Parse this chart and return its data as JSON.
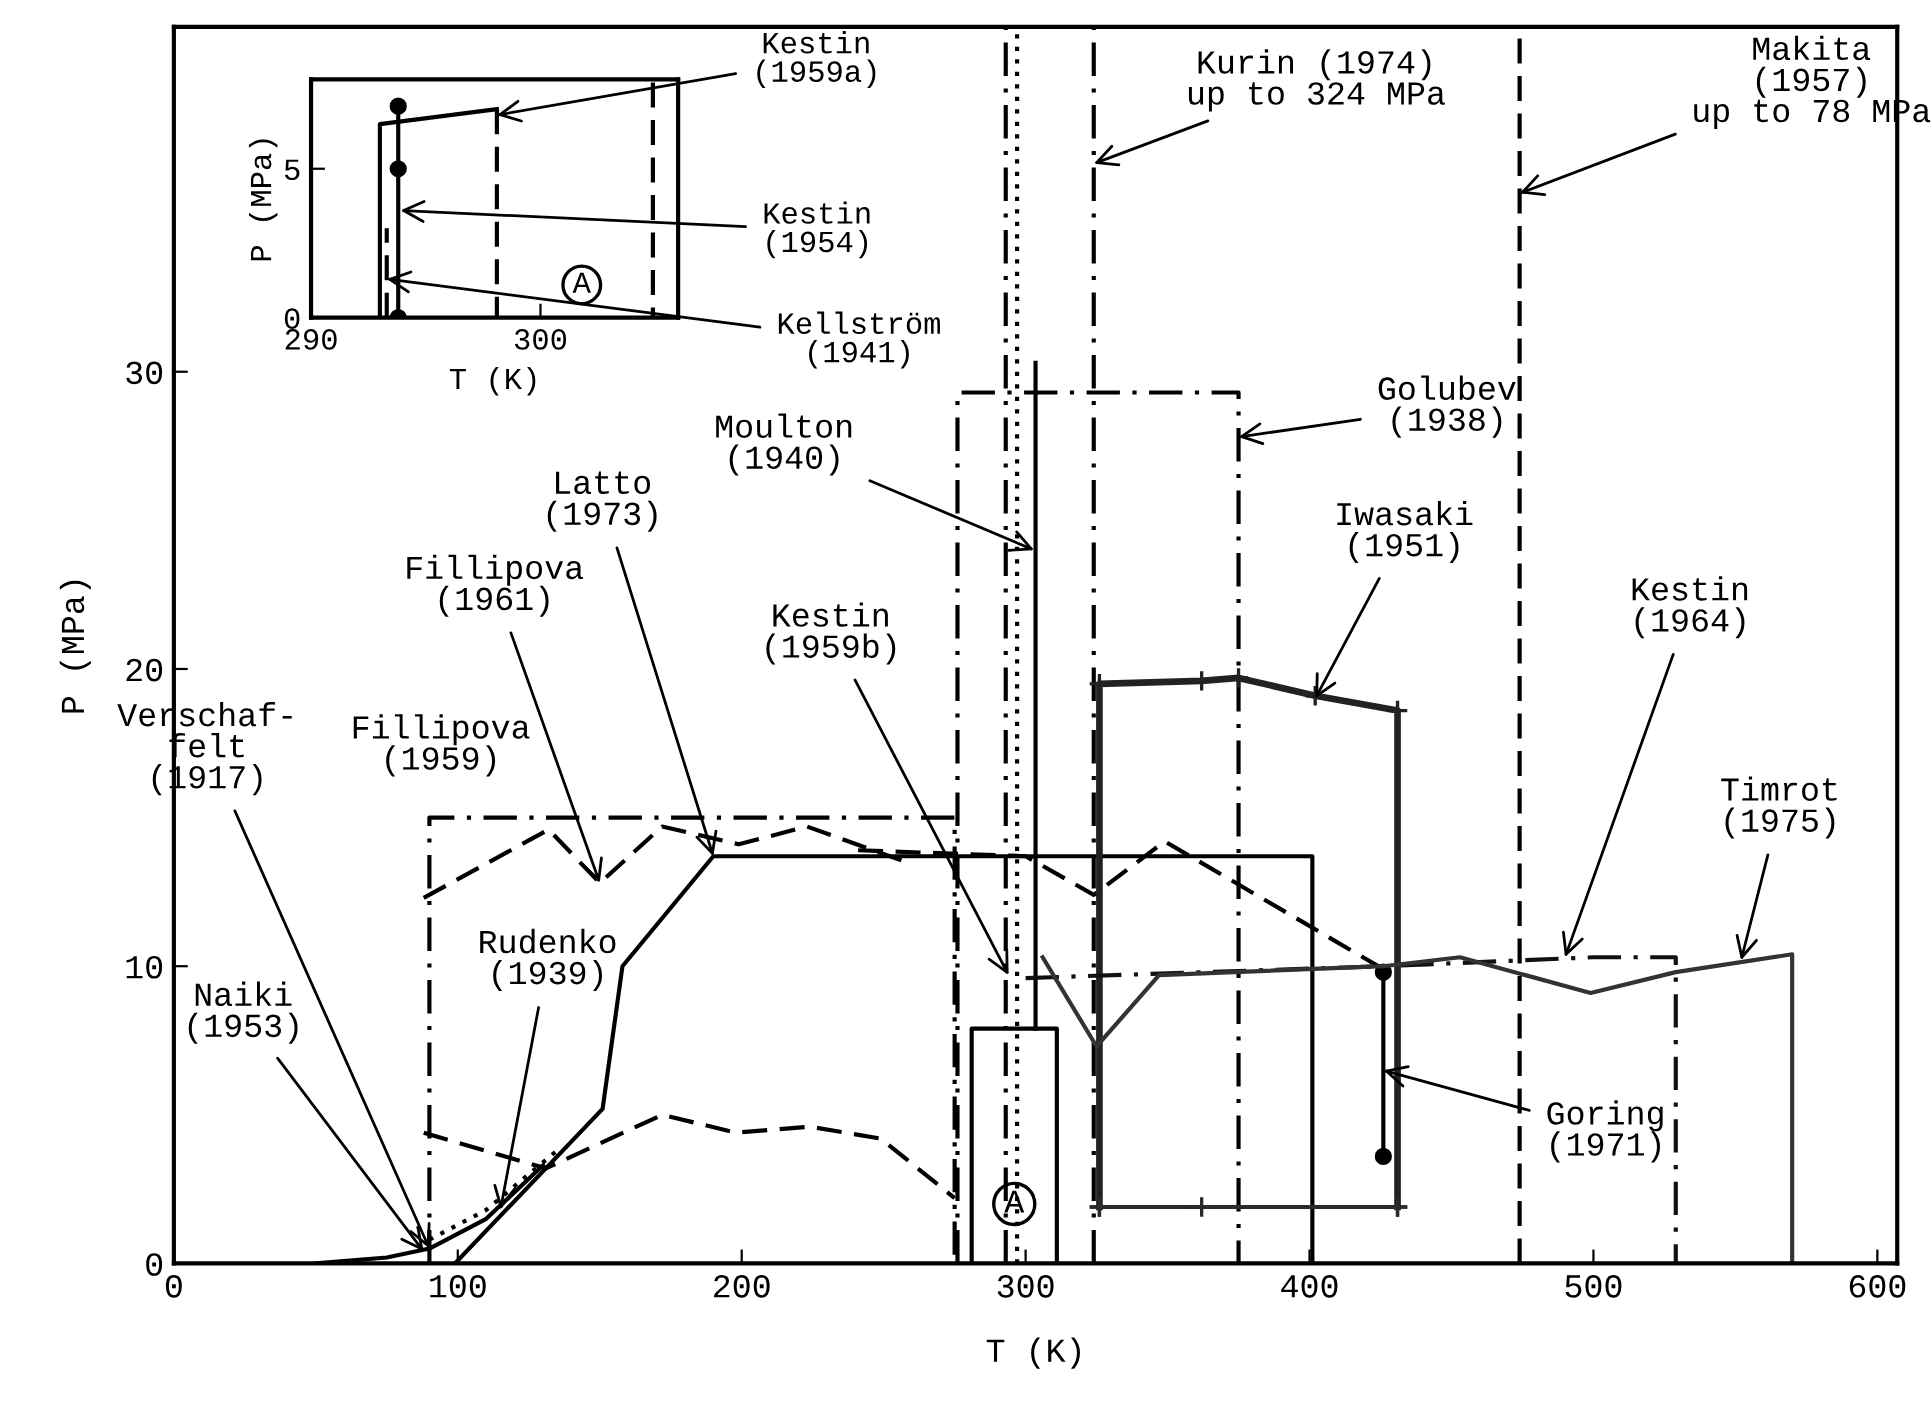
{
  "chart_data": [
    {
      "type": "line",
      "xlabel": "T (K)",
      "ylabel": "P (MPa)",
      "xlim": [
        0,
        607
      ],
      "ylim": [
        0,
        41.6
      ],
      "xticks": [
        0,
        100,
        200,
        300,
        400,
        500,
        600
      ],
      "yticks": [
        0,
        10,
        20,
        30
      ],
      "grid": false,
      "series": [
        {
          "color": "#000000",
          "line_style": "dashdot",
          "marker": "none",
          "x": [
            90,
            90,
            275,
            275
          ],
          "values": [
            0,
            15,
            15,
            0
          ]
        },
        {
          "color": "#000000",
          "line_style": "dashed",
          "marker": "none",
          "x": [
            88,
            132,
            150,
            172,
            199,
            223,
            258
          ],
          "values": [
            12.3,
            14.6,
            12.8,
            14.7,
            14.1,
            14.7,
            13.5
          ]
        },
        {
          "color": "#000000",
          "line_style": "dashed",
          "marker": "none",
          "x": [
            88,
            131,
            172,
            198,
            224,
            249,
            275
          ],
          "values": [
            4.4,
            3.2,
            5.0,
            4.4,
            4.6,
            4.2,
            2.2
          ]
        },
        {
          "color": "#000000",
          "line_style": "dashed",
          "marker": "none",
          "x": [
            241,
            300,
            324,
            349,
            426
          ],
          "values": [
            13.9,
            13.7,
            12.4,
            14.2,
            9.9
          ]
        },
        {
          "color": "#000000",
          "line_style": "solid",
          "marker": "none",
          "x": [
            99,
            151,
            158,
            190,
            401,
            401
          ],
          "values": [
            0,
            5.2,
            10.0,
            13.7,
            13.7,
            0
          ]
        },
        {
          "color": "#000000",
          "line_style": "solid",
          "marker": "none",
          "x": [
            50,
            75,
            90,
            110,
            130
          ],
          "values": [
            0,
            0.2,
            0.5,
            1.5,
            3.3
          ]
        },
        {
          "color": "#000000",
          "line_style": "dotted",
          "marker": "none",
          "x": [
            90,
            110,
            135
          ],
          "values": [
            0.8,
            1.8,
            3.8
          ]
        },
        {
          "color": "#000000",
          "line_style": "dashdot",
          "marker": "none",
          "x": [
            276,
            276,
            375,
            375
          ],
          "values": [
            0,
            29.3,
            29.3,
            0
          ]
        },
        {
          "color": "#000000",
          "line_style": "solid",
          "marker": "none",
          "x": [
            281,
            281,
            311,
            311
          ],
          "values": [
            0,
            7.9,
            7.9,
            0
          ]
        },
        {
          "color": "#000000",
          "line_style": "dashdot",
          "marker": "none",
          "x": [
            293,
            293
          ],
          "values": [
            0,
            41.6
          ]
        },
        {
          "color": "#000000",
          "line_style": "dotted",
          "marker": "none",
          "x": [
            297,
            297
          ],
          "values": [
            0,
            41.6
          ]
        },
        {
          "color": "#000000",
          "line_style": "solid",
          "marker": "none",
          "x": [
            303.5,
            303.5
          ],
          "values": [
            7.9,
            30.3
          ]
        },
        {
          "color": "#000000",
          "line_style": "dashdot",
          "marker": "none",
          "x": [
            324,
            324
          ],
          "values": [
            0,
            41.6
          ]
        },
        {
          "color": "#000000",
          "line_style": "dashed",
          "marker": "none",
          "x": [
            474,
            474
          ],
          "values": [
            0,
            41.6
          ]
        },
        {
          "color": "#222222",
          "line_style": "solid",
          "marker": "cross",
          "x": [
            326,
            326,
            362,
            375,
            402,
            431,
            431
          ],
          "values": [
            1.9,
            19.5,
            19.6,
            19.7,
            19.1,
            18.6,
            1.9
          ]
        },
        {
          "color": "#2a2a2a",
          "line_style": "solid",
          "marker": "cross",
          "x": [
            326,
            362,
            431
          ],
          "values": [
            1.9,
            1.9,
            1.9
          ]
        },
        {
          "color": "#000000",
          "line_style": "solid",
          "marker": "circle",
          "x": [
            426,
            426
          ],
          "values": [
            9.8,
            3.6
          ]
        },
        {
          "color": "#111111",
          "line_style": "dashdot",
          "marker": "none",
          "x": [
            300,
            426,
            500,
            529,
            529
          ],
          "values": [
            9.6,
            10.0,
            10.3,
            10.3,
            0
          ]
        },
        {
          "color": "#333333",
          "line_style": "solid",
          "marker": "none",
          "x": [
            306,
            325,
            347,
            426,
            453,
            499,
            529,
            570,
            570
          ],
          "values": [
            10.3,
            7.3,
            9.7,
            10.0,
            10.3,
            9.1,
            9.8,
            10.4,
            0
          ]
        }
      ],
      "annotations": [
        {
          "text": "Kurin (1974)\nup to 324 MPa",
          "x": 324,
          "y": 37.0
        },
        {
          "text": "Makita\n(1957)\nup to 78 MPa",
          "x": 474,
          "y": 36.0
        },
        {
          "text": "Golubev\n(1938)",
          "x": 375,
          "y": 27.8
        },
        {
          "text": "Moulton\n(1940)",
          "x": 303,
          "y": 24.0
        },
        {
          "text": "Latto\n(1973)",
          "x": 190,
          "y": 13.7
        },
        {
          "text": "Iwasaki\n(1951)",
          "x": 402,
          "y": 19.0
        },
        {
          "text": "Fillipova\n(1961)",
          "x": 150,
          "y": 12.8
        },
        {
          "text": "Fillipova\n(1959)",
          "x": 92,
          "y": 15.0
        },
        {
          "text": "Kestin\n(1959b)",
          "x": 294,
          "y": 9.7
        },
        {
          "text": "Kestin\n(1964)",
          "x": 490,
          "y": 10.3
        },
        {
          "text": "Timrot\n(1975)",
          "x": 552,
          "y": 10.2
        },
        {
          "text": "Verschaf-\nfelt\n(1917)",
          "x": 90,
          "y": 0.5
        },
        {
          "text": "Rudenko\n(1939)",
          "x": 115,
          "y": 1.8
        },
        {
          "text": "Naiki\n(1953)",
          "x": 88,
          "y": 0.4
        },
        {
          "text": "Goring\n(1971)",
          "x": 426,
          "y": 6.5
        },
        {
          "text": "A",
          "x": 296,
          "y": 2.0
        }
      ]
    },
    {
      "type": "line",
      "xlabel": "T (K)",
      "ylabel": "P (MPa)",
      "xlim": [
        290,
        306
      ],
      "ylim": [
        0,
        8
      ],
      "xticks": [
        290,
        300
      ],
      "yticks": [
        0,
        5
      ],
      "grid": false,
      "series": [
        {
          "color": "#000000",
          "line_style": "solid",
          "marker": "none",
          "x": [
            293.0,
            293.0,
            298.1
          ],
          "values": [
            0,
            6.5,
            7.0
          ]
        },
        {
          "color": "#000000",
          "line_style": "dashed",
          "marker": "none",
          "x": [
            298.1,
            298.1
          ],
          "values": [
            7.0,
            0
          ]
        },
        {
          "color": "#000000",
          "line_style": "dashed",
          "marker": "none",
          "x": [
            304.9,
            304.9
          ],
          "values": [
            7.9,
            0
          ]
        },
        {
          "color": "#000000",
          "line_style": "solid",
          "marker": "circle",
          "x": [
            293.8,
            293.8,
            293.8
          ],
          "values": [
            0,
            5.0,
            7.1
          ]
        },
        {
          "color": "#000000",
          "line_style": "dashed",
          "marker": "none",
          "x": [
            293.3,
            293.3
          ],
          "values": [
            0,
            3.0
          ]
        }
      ],
      "annotations": [
        {
          "text": "Kestin\n(1959a)",
          "x": 298.1,
          "y": 6.8
        },
        {
          "text": "Kestin\n(1954)",
          "x": 293.9,
          "y": 3.6
        },
        {
          "text": "Kellström\n(1941)",
          "x": 293.3,
          "y": 1.3
        },
        {
          "text": "A",
          "x": 301.8,
          "y": 1.1
        }
      ]
    }
  ]
}
